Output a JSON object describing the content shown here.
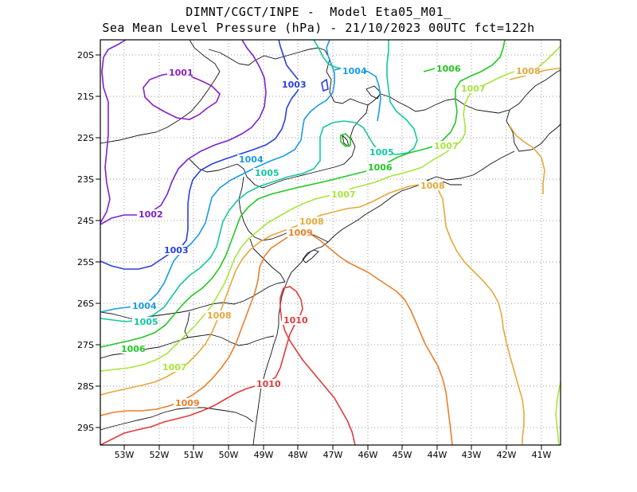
{
  "title_line1": "DIMNT/CGCT/INPE -  Model Eta05_M01_",
  "title_line2": "Sea Mean Level Pressure (hPa) - 21/10/2023 00UTC fct=122h",
  "lon_labels": [
    "53W",
    "52W",
    "51W",
    "50W",
    "49W",
    "48W",
    "47W",
    "46W",
    "45W",
    "44W",
    "43W",
    "42W",
    "41W"
  ],
  "lat_labels": [
    "20S",
    "21S",
    "22S",
    "23S",
    "24S",
    "25S",
    "26S",
    "27S",
    "28S",
    "29S"
  ],
  "contour_labels": {
    "c1001": "1001",
    "c1002": "1002",
    "c1003a": "1003",
    "c1003b": "1003",
    "c1004a": "1004",
    "c1004b": "1004",
    "c1004c": "1004",
    "c1005a": "1005",
    "c1005b": "1005",
    "c1005c": "1005",
    "c1006a": "1006",
    "c1006b": "1006",
    "c1006c": "1006",
    "c1007a": "1007",
    "c1007b": "1007",
    "c1007c": "1007",
    "c1007d": "1007",
    "c1008a": "1008",
    "c1008b": "1008",
    "c1008c": "1008",
    "c1008d": "1008",
    "c1009a": "1009",
    "c1009b": "1009",
    "c1010a": "1010",
    "c1010b": "1010"
  },
  "contour_colors": {
    "c1001": "#8a1fc4",
    "c1002": "#7a22d0",
    "c1003": "#2a3fe0",
    "c1004": "#1a9ae8",
    "c1005": "#10c8a0",
    "c1006": "#22c822",
    "c1007": "#a6e63c",
    "c1008": "#e6a83a",
    "c1009": "#ea7f2a",
    "c1010": "#e23a3a"
  }
}
